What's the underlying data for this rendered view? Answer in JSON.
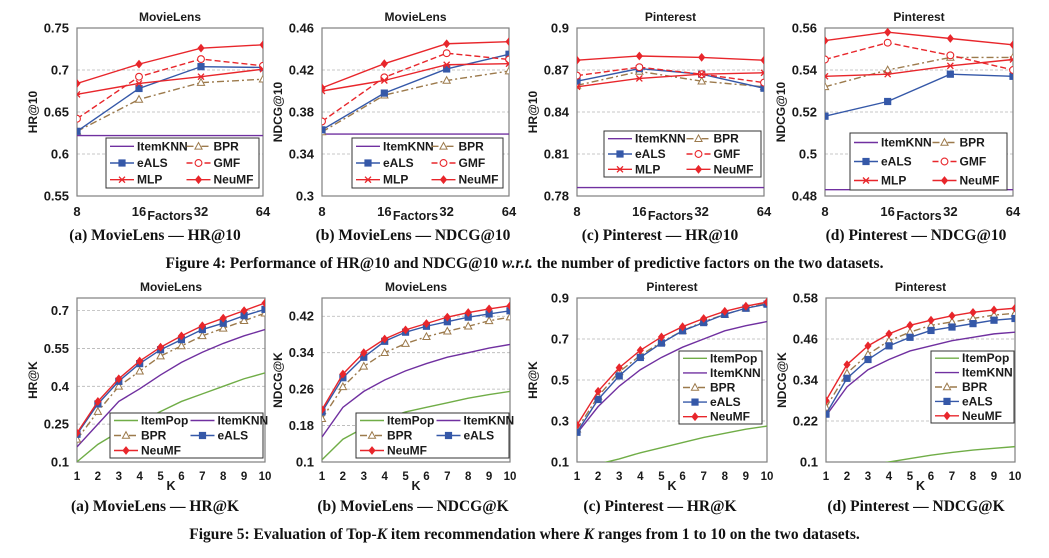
{
  "styles": {
    "ItemPop": {
      "color": "#70ad47",
      "dash": "solid",
      "marker": "none"
    },
    "ItemKNN": {
      "color": "#7030a0",
      "dash": "solid",
      "marker": "none"
    },
    "BPR": {
      "color": "#9c7a4c",
      "dash": "dashdot",
      "marker": "triangle-open"
    },
    "eALS": {
      "color": "#3558a8",
      "dash": "solid",
      "marker": "square"
    },
    "GMF": {
      "color": "#e8262b",
      "dash": "dashed",
      "marker": "circle-open"
    },
    "MLP": {
      "color": "#e8262b",
      "dash": "solid",
      "marker": "x"
    },
    "NeuMF": {
      "color": "#e8262b",
      "dash": "solid",
      "marker": "diamond"
    }
  },
  "figure4": {
    "prefix": "Figure 4: Performance of HR@10 and NDCG@10 ",
    "italic": "w.r.t.",
    "suffix": " the number of predictive factors on the two datasets."
  },
  "figure5": {
    "prefix": "Figure 5: Evaluation of Top-",
    "italic": "K",
    "middle": " item recommendation where ",
    "italic2": "K",
    "suffix": " ranges from 1 to 10 on the two datasets."
  },
  "chart_data": [
    {
      "type": "line",
      "caption": "(a) MovieLens — HR@10",
      "title": "MovieLens",
      "xlabel": "Factors",
      "ylabel": "HR@10",
      "categories": [
        "8",
        "16",
        "32",
        "64"
      ],
      "ylim": [
        0.55,
        0.75
      ],
      "yticks": [
        "0.55",
        "0.6",
        "0.65",
        "0.7",
        "0.75"
      ],
      "grid": true,
      "legend": "bottom",
      "legend_order": [
        "ItemKNN",
        "BPR",
        "eALS",
        "GMF",
        "MLP",
        "NeuMF"
      ],
      "series": [
        {
          "name": "ItemKNN",
          "values": [
            0.622,
            0.622,
            0.622,
            0.622
          ]
        },
        {
          "name": "BPR",
          "values": [
            0.627,
            0.665,
            0.685,
            0.689
          ]
        },
        {
          "name": "eALS",
          "values": [
            0.627,
            0.678,
            0.704,
            0.703
          ]
        },
        {
          "name": "GMF",
          "values": [
            0.642,
            0.692,
            0.713,
            0.705
          ]
        },
        {
          "name": "MLP",
          "values": [
            0.671,
            0.684,
            0.692,
            0.701
          ]
        },
        {
          "name": "NeuMF",
          "values": [
            0.684,
            0.707,
            0.726,
            0.73
          ]
        }
      ]
    },
    {
      "type": "line",
      "caption": "(b) MovieLens — NDCG@10",
      "title": "MovieLens",
      "xlabel": "Factors",
      "ylabel": "NDCG@10",
      "categories": [
        "8",
        "16",
        "32",
        "64"
      ],
      "ylim": [
        0.3,
        0.46
      ],
      "yticks": [
        "0.3",
        "0.34",
        "0.38",
        "0.42",
        "0.46"
      ],
      "grid": true,
      "legend": "bottom",
      "legend_order": [
        "ItemKNN",
        "BPR",
        "eALS",
        "GMF",
        "MLP",
        "NeuMF"
      ],
      "series": [
        {
          "name": "ItemKNN",
          "values": [
            0.359,
            0.359,
            0.359,
            0.359
          ]
        },
        {
          "name": "BPR",
          "values": [
            0.361,
            0.396,
            0.41,
            0.419
          ]
        },
        {
          "name": "eALS",
          "values": [
            0.363,
            0.398,
            0.421,
            0.435
          ]
        },
        {
          "name": "GMF",
          "values": [
            0.371,
            0.413,
            0.436,
            0.43
          ]
        },
        {
          "name": "MLP",
          "values": [
            0.4,
            0.41,
            0.425,
            0.426
          ]
        },
        {
          "name": "NeuMF",
          "values": [
            0.403,
            0.426,
            0.445,
            0.447
          ]
        }
      ]
    },
    {
      "type": "line",
      "caption": "(c) Pinterest — HR@10",
      "title": "Pinterest",
      "xlabel": "Factors",
      "ylabel": "HR@10",
      "categories": [
        "8",
        "16",
        "32",
        "64"
      ],
      "ylim": [
        0.78,
        0.9
      ],
      "yticks": [
        "0.78",
        "0.81",
        "0.84",
        "0.87",
        "0.9"
      ],
      "grid": true,
      "legend": "bottom",
      "legend_order": [
        "ItemKNN",
        "BPR",
        "eALS",
        "GMF",
        "MLP",
        "NeuMF"
      ],
      "series": [
        {
          "name": "ItemKNN",
          "values": [
            0.786,
            0.786,
            0.786,
            0.786
          ]
        },
        {
          "name": "BPR",
          "values": [
            0.859,
            0.869,
            0.862,
            0.858
          ]
        },
        {
          "name": "eALS",
          "values": [
            0.862,
            0.871,
            0.867,
            0.857
          ]
        },
        {
          "name": "GMF",
          "values": [
            0.866,
            0.872,
            0.867,
            0.861
          ]
        },
        {
          "name": "MLP",
          "values": [
            0.858,
            0.864,
            0.867,
            0.868
          ]
        },
        {
          "name": "NeuMF",
          "values": [
            0.877,
            0.88,
            0.879,
            0.877
          ]
        }
      ]
    },
    {
      "type": "line",
      "caption": "(d) Pinterest — NDCG@10",
      "title": "Pinterest",
      "xlabel": "Factors",
      "ylabel": "NDCG@10",
      "categories": [
        "8",
        "16",
        "32",
        "64"
      ],
      "ylim": [
        0.48,
        0.56
      ],
      "yticks": [
        "0.48",
        "0.5",
        "0.52",
        "0.54",
        "0.56"
      ],
      "grid": true,
      "legend": "bottom",
      "legend_order": [
        "ItemKNN",
        "BPR",
        "eALS",
        "GMF",
        "MLP",
        "NeuMF"
      ],
      "series": [
        {
          "name": "ItemKNN",
          "values": [
            0.483,
            0.483,
            0.483,
            0.483
          ]
        },
        {
          "name": "BPR",
          "values": [
            0.532,
            0.54,
            0.546,
            0.546
          ]
        },
        {
          "name": "eALS",
          "values": [
            0.518,
            0.525,
            0.538,
            0.537
          ]
        },
        {
          "name": "GMF",
          "values": [
            0.545,
            0.553,
            0.547,
            0.54
          ]
        },
        {
          "name": "MLP",
          "values": [
            0.537,
            0.538,
            0.542,
            0.545
          ]
        },
        {
          "name": "NeuMF",
          "values": [
            0.554,
            0.558,
            0.555,
            0.552
          ]
        }
      ]
    },
    {
      "type": "line",
      "caption": "(a) MovieLens — HR@K",
      "title": "MovieLens",
      "xlabel": "K",
      "ylabel": "HR@K",
      "categories": [
        "1",
        "2",
        "3",
        "4",
        "5",
        "6",
        "7",
        "8",
        "9",
        "10"
      ],
      "ylim": [
        0.1,
        0.75
      ],
      "yticks": [
        "0.1",
        "0.25",
        "0.4",
        "0.55",
        "0.7"
      ],
      "grid": true,
      "legend": "bottom-right",
      "legend_order": [
        "ItemPop",
        "ItemKNN",
        "BPR",
        "eALS",
        "NeuMF"
      ],
      "series": [
        {
          "name": "ItemPop",
          "values": [
            0.101,
            0.17,
            0.22,
            0.26,
            0.3,
            0.34,
            0.37,
            0.4,
            0.43,
            0.453
          ]
        },
        {
          "name": "ItemKNN",
          "values": [
            0.16,
            0.25,
            0.34,
            0.39,
            0.445,
            0.495,
            0.535,
            0.57,
            0.6,
            0.625
          ]
        },
        {
          "name": "BPR",
          "values": [
            0.19,
            0.3,
            0.4,
            0.46,
            0.52,
            0.56,
            0.6,
            0.63,
            0.66,
            0.69
          ]
        },
        {
          "name": "eALS",
          "values": [
            0.21,
            0.33,
            0.42,
            0.49,
            0.545,
            0.585,
            0.625,
            0.65,
            0.68,
            0.705
          ]
        },
        {
          "name": "NeuMF",
          "values": [
            0.215,
            0.34,
            0.43,
            0.5,
            0.555,
            0.6,
            0.64,
            0.67,
            0.7,
            0.73
          ]
        }
      ]
    },
    {
      "type": "line",
      "caption": "(b) MovieLens — NDCG@K",
      "title": "MovieLens",
      "xlabel": "K",
      "ylabel": "NDCG@K",
      "categories": [
        "1",
        "2",
        "3",
        "4",
        "5",
        "6",
        "7",
        "8",
        "9",
        "10"
      ],
      "ylim": [
        0.1,
        0.46
      ],
      "yticks": [
        "0.1",
        "0.18",
        "0.26",
        "0.34",
        "0.42"
      ],
      "grid": true,
      "legend": "bottom-right",
      "legend_order": [
        "ItemPop",
        "ItemKNN",
        "BPR",
        "eALS",
        "NeuMF"
      ],
      "series": [
        {
          "name": "ItemPop",
          "values": [
            0.105,
            0.15,
            0.175,
            0.195,
            0.21,
            0.22,
            0.23,
            0.24,
            0.248,
            0.255
          ]
        },
        {
          "name": "ItemKNN",
          "values": [
            0.155,
            0.22,
            0.255,
            0.28,
            0.3,
            0.316,
            0.33,
            0.34,
            0.35,
            0.358
          ]
        },
        {
          "name": "BPR",
          "values": [
            0.195,
            0.265,
            0.31,
            0.34,
            0.36,
            0.375,
            0.387,
            0.398,
            0.41,
            0.418
          ]
        },
        {
          "name": "eALS",
          "values": [
            0.21,
            0.285,
            0.33,
            0.365,
            0.385,
            0.398,
            0.408,
            0.418,
            0.425,
            0.432
          ]
        },
        {
          "name": "NeuMF",
          "values": [
            0.215,
            0.293,
            0.34,
            0.37,
            0.39,
            0.404,
            0.418,
            0.428,
            0.436,
            0.443
          ]
        }
      ]
    },
    {
      "type": "line",
      "caption": "(c) Pinterest — HR@K",
      "title": "Pinterest",
      "xlabel": "K",
      "ylabel": "HR@K",
      "categories": [
        "1",
        "2",
        "3",
        "4",
        "5",
        "6",
        "7",
        "8",
        "9",
        "10"
      ],
      "ylim": [
        0.1,
        0.9
      ],
      "yticks": [
        "0.1",
        "0.3",
        "0.5",
        "0.7",
        "0.9"
      ],
      "grid": true,
      "legend": "right",
      "legend_order": [
        "ItemPop",
        "ItemKNN",
        "BPR",
        "eALS",
        "NeuMF"
      ],
      "series": [
        {
          "name": "ItemPop",
          "values": [
            0.07,
            0.09,
            0.115,
            0.145,
            0.17,
            0.195,
            0.22,
            0.24,
            0.26,
            0.275
          ]
        },
        {
          "name": "ItemKNN",
          "values": [
            0.24,
            0.37,
            0.47,
            0.55,
            0.61,
            0.66,
            0.7,
            0.74,
            0.765,
            0.785
          ]
        },
        {
          "name": "BPR",
          "values": [
            0.26,
            0.42,
            0.54,
            0.62,
            0.685,
            0.74,
            0.785,
            0.82,
            0.85,
            0.875
          ]
        },
        {
          "name": "eALS",
          "values": [
            0.245,
            0.405,
            0.52,
            0.61,
            0.68,
            0.74,
            0.78,
            0.82,
            0.85,
            0.87
          ]
        },
        {
          "name": "NeuMF",
          "values": [
            0.28,
            0.445,
            0.56,
            0.645,
            0.71,
            0.76,
            0.8,
            0.835,
            0.86,
            0.88
          ]
        }
      ]
    },
    {
      "type": "line",
      "caption": "(d) Pinterest — NDCG@K",
      "title": "Pinterest",
      "xlabel": "K",
      "ylabel": "NDCG@K",
      "categories": [
        "1",
        "2",
        "3",
        "4",
        "5",
        "6",
        "7",
        "8",
        "9",
        "10"
      ],
      "ylim": [
        0.1,
        0.58
      ],
      "yticks": [
        "0.1",
        "0.22",
        "0.34",
        "0.46",
        "0.58"
      ],
      "grid": true,
      "legend": "right",
      "legend_order": [
        "ItemPop",
        "ItemKNN",
        "BPR",
        "eALS",
        "NeuMF"
      ],
      "series": [
        {
          "name": "ItemPop",
          "values": [
            0.06,
            0.075,
            0.09,
            0.1,
            0.11,
            0.12,
            0.128,
            0.135,
            0.14,
            0.145
          ]
        },
        {
          "name": "ItemKNN",
          "values": [
            0.235,
            0.32,
            0.37,
            0.4,
            0.425,
            0.44,
            0.455,
            0.465,
            0.475,
            0.48
          ]
        },
        {
          "name": "BPR",
          "values": [
            0.26,
            0.36,
            0.415,
            0.455,
            0.48,
            0.5,
            0.51,
            0.52,
            0.53,
            0.535
          ]
        },
        {
          "name": "eALS",
          "values": [
            0.24,
            0.345,
            0.4,
            0.44,
            0.465,
            0.485,
            0.495,
            0.505,
            0.515,
            0.52
          ]
        },
        {
          "name": "NeuMF",
          "values": [
            0.28,
            0.385,
            0.44,
            0.475,
            0.5,
            0.515,
            0.528,
            0.538,
            0.545,
            0.55
          ]
        }
      ]
    }
  ]
}
